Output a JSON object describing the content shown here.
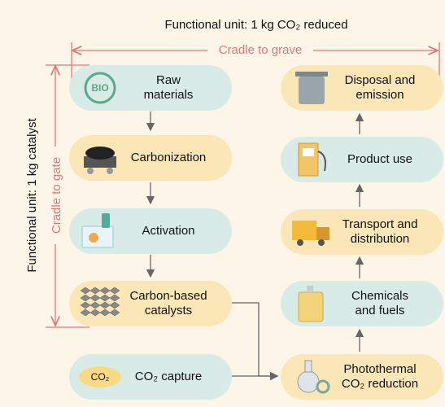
{
  "header": {
    "title": "Functional unit: 1 kg CO₂ reduced",
    "scope_grave": "Cradle to grave",
    "side_title": "Functional unit: 1 kg catalyst",
    "scope_gate": "Cradle to gate"
  },
  "nodes": [
    {
      "lines": [
        "Raw",
        "materials"
      ],
      "icon_text": "BIO"
    },
    {
      "lines": [
        "Carbonization"
      ]
    },
    {
      "lines": [
        "Activation"
      ]
    },
    {
      "lines": [
        "Carbon-based",
        "catalysts"
      ]
    },
    {
      "lines": [
        "CO₂ capture"
      ],
      "icon_text": "CO₂"
    },
    {
      "lines": [
        "Photothermal",
        "CO₂ reduction"
      ]
    },
    {
      "lines": [
        "Chemicals",
        "and fuels"
      ]
    },
    {
      "lines": [
        "Transport and",
        "distribution"
      ]
    },
    {
      "lines": [
        "Product use"
      ]
    },
    {
      "lines": [
        "Disposal and",
        "emission"
      ]
    }
  ]
}
